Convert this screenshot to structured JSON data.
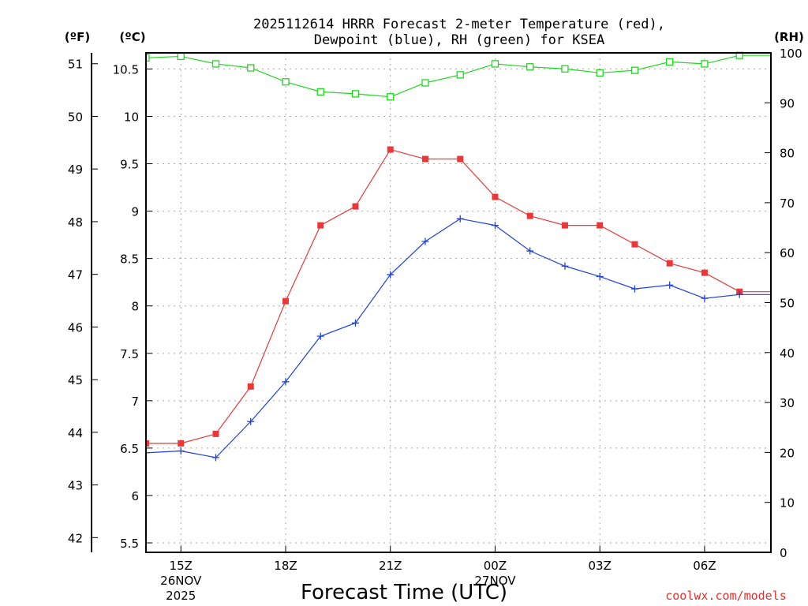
{
  "chart_data": {
    "type": "line",
    "title_line1": "2025112614 HRRR Forecast 2-meter Temperature (red),",
    "title_line2": "Dewpoint (blue), RH (green) for KSEA",
    "unit_f": "(ºF)",
    "unit_c": "(ºC)",
    "unit_rh": "(RH)",
    "xlabel": "Forecast Time (UTC)",
    "credit": "coolwx.com/models",
    "credit_color": "#e03030",
    "x_ticks": [
      {
        "h": 1,
        "lines": [
          "15Z",
          "26NOV",
          "2025"
        ]
      },
      {
        "h": 4,
        "lines": [
          "18Z"
        ]
      },
      {
        "h": 7,
        "lines": [
          "21Z"
        ]
      },
      {
        "h": 10,
        "lines": [
          "00Z",
          "27NOV"
        ]
      },
      {
        "h": 13,
        "lines": [
          "03Z"
        ]
      },
      {
        "h": 16,
        "lines": [
          "06Z"
        ]
      }
    ],
    "xlim": [
      0,
      17.9
    ],
    "c_axis": {
      "ylim": [
        5.4,
        10.67
      ],
      "ticks": [
        "5.5",
        "6",
        "6.5",
        "7",
        "7.5",
        "8",
        "8.5",
        "9",
        "9.5",
        "10",
        "10.5"
      ]
    },
    "f_axis": {
      "ticks": [
        "42",
        "43",
        "44",
        "45",
        "46",
        "47",
        "48",
        "49",
        "50",
        "51"
      ]
    },
    "rh_axis": {
      "ylim": [
        0,
        100
      ],
      "ticks": [
        "0",
        "10",
        "20",
        "30",
        "40",
        "50",
        "60",
        "70",
        "80",
        "90",
        "100"
      ]
    },
    "series": [
      {
        "name": "Temperature",
        "axis": "c",
        "color": "#e83838",
        "marker": "filled-square",
        "x": [
          0,
          1,
          2,
          3,
          4,
          5,
          6,
          7,
          8,
          9,
          10,
          11,
          12,
          13,
          14,
          15,
          16,
          17,
          18
        ],
        "values": [
          6.55,
          6.55,
          6.65,
          7.15,
          8.05,
          8.85,
          9.05,
          9.65,
          9.55,
          9.55,
          9.15,
          8.95,
          8.85,
          8.85,
          8.65,
          8.45,
          8.35,
          8.15,
          8.15
        ]
      },
      {
        "name": "Dewpoint",
        "axis": "c",
        "color": "#2040e0",
        "marker": "plus",
        "x": [
          0,
          1,
          2,
          3,
          4,
          5,
          6,
          7,
          8,
          9,
          10,
          11,
          12,
          13,
          14,
          15,
          16,
          17,
          18
        ],
        "values": [
          6.45,
          6.47,
          6.4,
          6.78,
          7.2,
          7.68,
          7.82,
          8.33,
          8.68,
          8.92,
          8.85,
          8.58,
          8.42,
          8.31,
          8.18,
          8.22,
          8.08,
          8.12,
          8.12
        ]
      },
      {
        "name": "RH",
        "axis": "rh",
        "color": "#20d820",
        "marker": "open-square",
        "x": [
          0,
          1,
          2,
          3,
          4,
          5,
          6,
          7,
          8,
          9,
          10,
          11,
          12,
          13,
          14,
          15,
          16,
          17,
          18
        ],
        "values": [
          99,
          99.3,
          97.8,
          97,
          94.2,
          92.2,
          91.8,
          91.2,
          94,
          95.6,
          97.8,
          97.2,
          96.8,
          96,
          96.5,
          98.2,
          97.8,
          99.5,
          99.5
        ]
      }
    ]
  }
}
